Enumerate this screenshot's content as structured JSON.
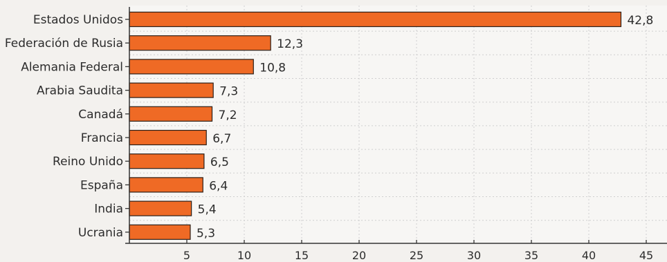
{
  "chart_data": {
    "type": "bar",
    "orientation": "horizontal",
    "categories": [
      "Estados Unidos",
      "Federación de Rusia",
      "Alemania Federal",
      "Arabia Saudita",
      "Canadá",
      "Francia",
      "Reino Unido",
      "España",
      "India",
      "Ucrania"
    ],
    "values": [
      42.8,
      12.3,
      10.8,
      7.3,
      7.2,
      6.7,
      6.5,
      6.4,
      5.4,
      5.3
    ],
    "value_labels": [
      "42,8",
      "12,3",
      "10,8",
      "7,3",
      "7,2",
      "6,7",
      "6,5",
      "6,4",
      "5,4",
      "5,3"
    ],
    "xlim": [
      0,
      45
    ],
    "xticks": [
      5,
      10,
      15,
      20,
      25,
      30,
      35,
      40,
      45
    ],
    "xtick_labels": [
      "5",
      "10",
      "15",
      "20",
      "25",
      "30",
      "35",
      "40",
      "45"
    ],
    "grid": true,
    "title": "",
    "xlabel": "",
    "ylabel": "",
    "colors": {
      "bar_fill": "#ef6a25",
      "bar_stroke": "#2b1f18",
      "axis": "#333333",
      "text": "#2c2c2c",
      "grid": "#cfcfcf",
      "background": "#f3f1ee"
    }
  }
}
